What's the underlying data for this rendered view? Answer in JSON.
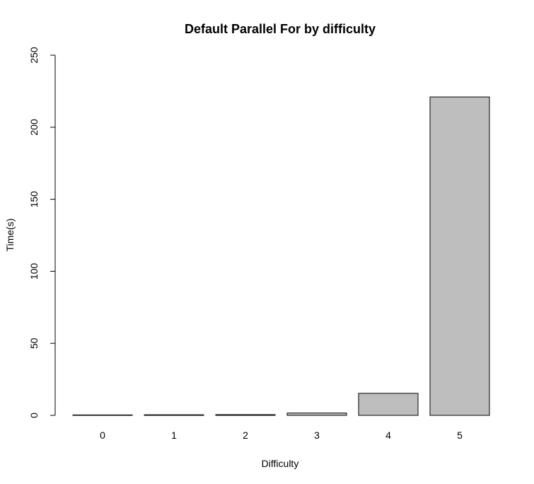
{
  "chart_data": {
    "type": "bar",
    "title": "Default Parallel For by difficulty",
    "xlabel": "Difficulty",
    "ylabel": "Time(s)",
    "categories": [
      "0",
      "1",
      "2",
      "3",
      "4",
      "5"
    ],
    "values": [
      0.05,
      0.4,
      0.5,
      1.6,
      15.3,
      221
    ],
    "ylim": [
      0,
      250
    ],
    "yticks": [
      0,
      50,
      100,
      150,
      200,
      250
    ],
    "bar_color": "#bebebe",
    "grid": false,
    "legend": "none"
  }
}
